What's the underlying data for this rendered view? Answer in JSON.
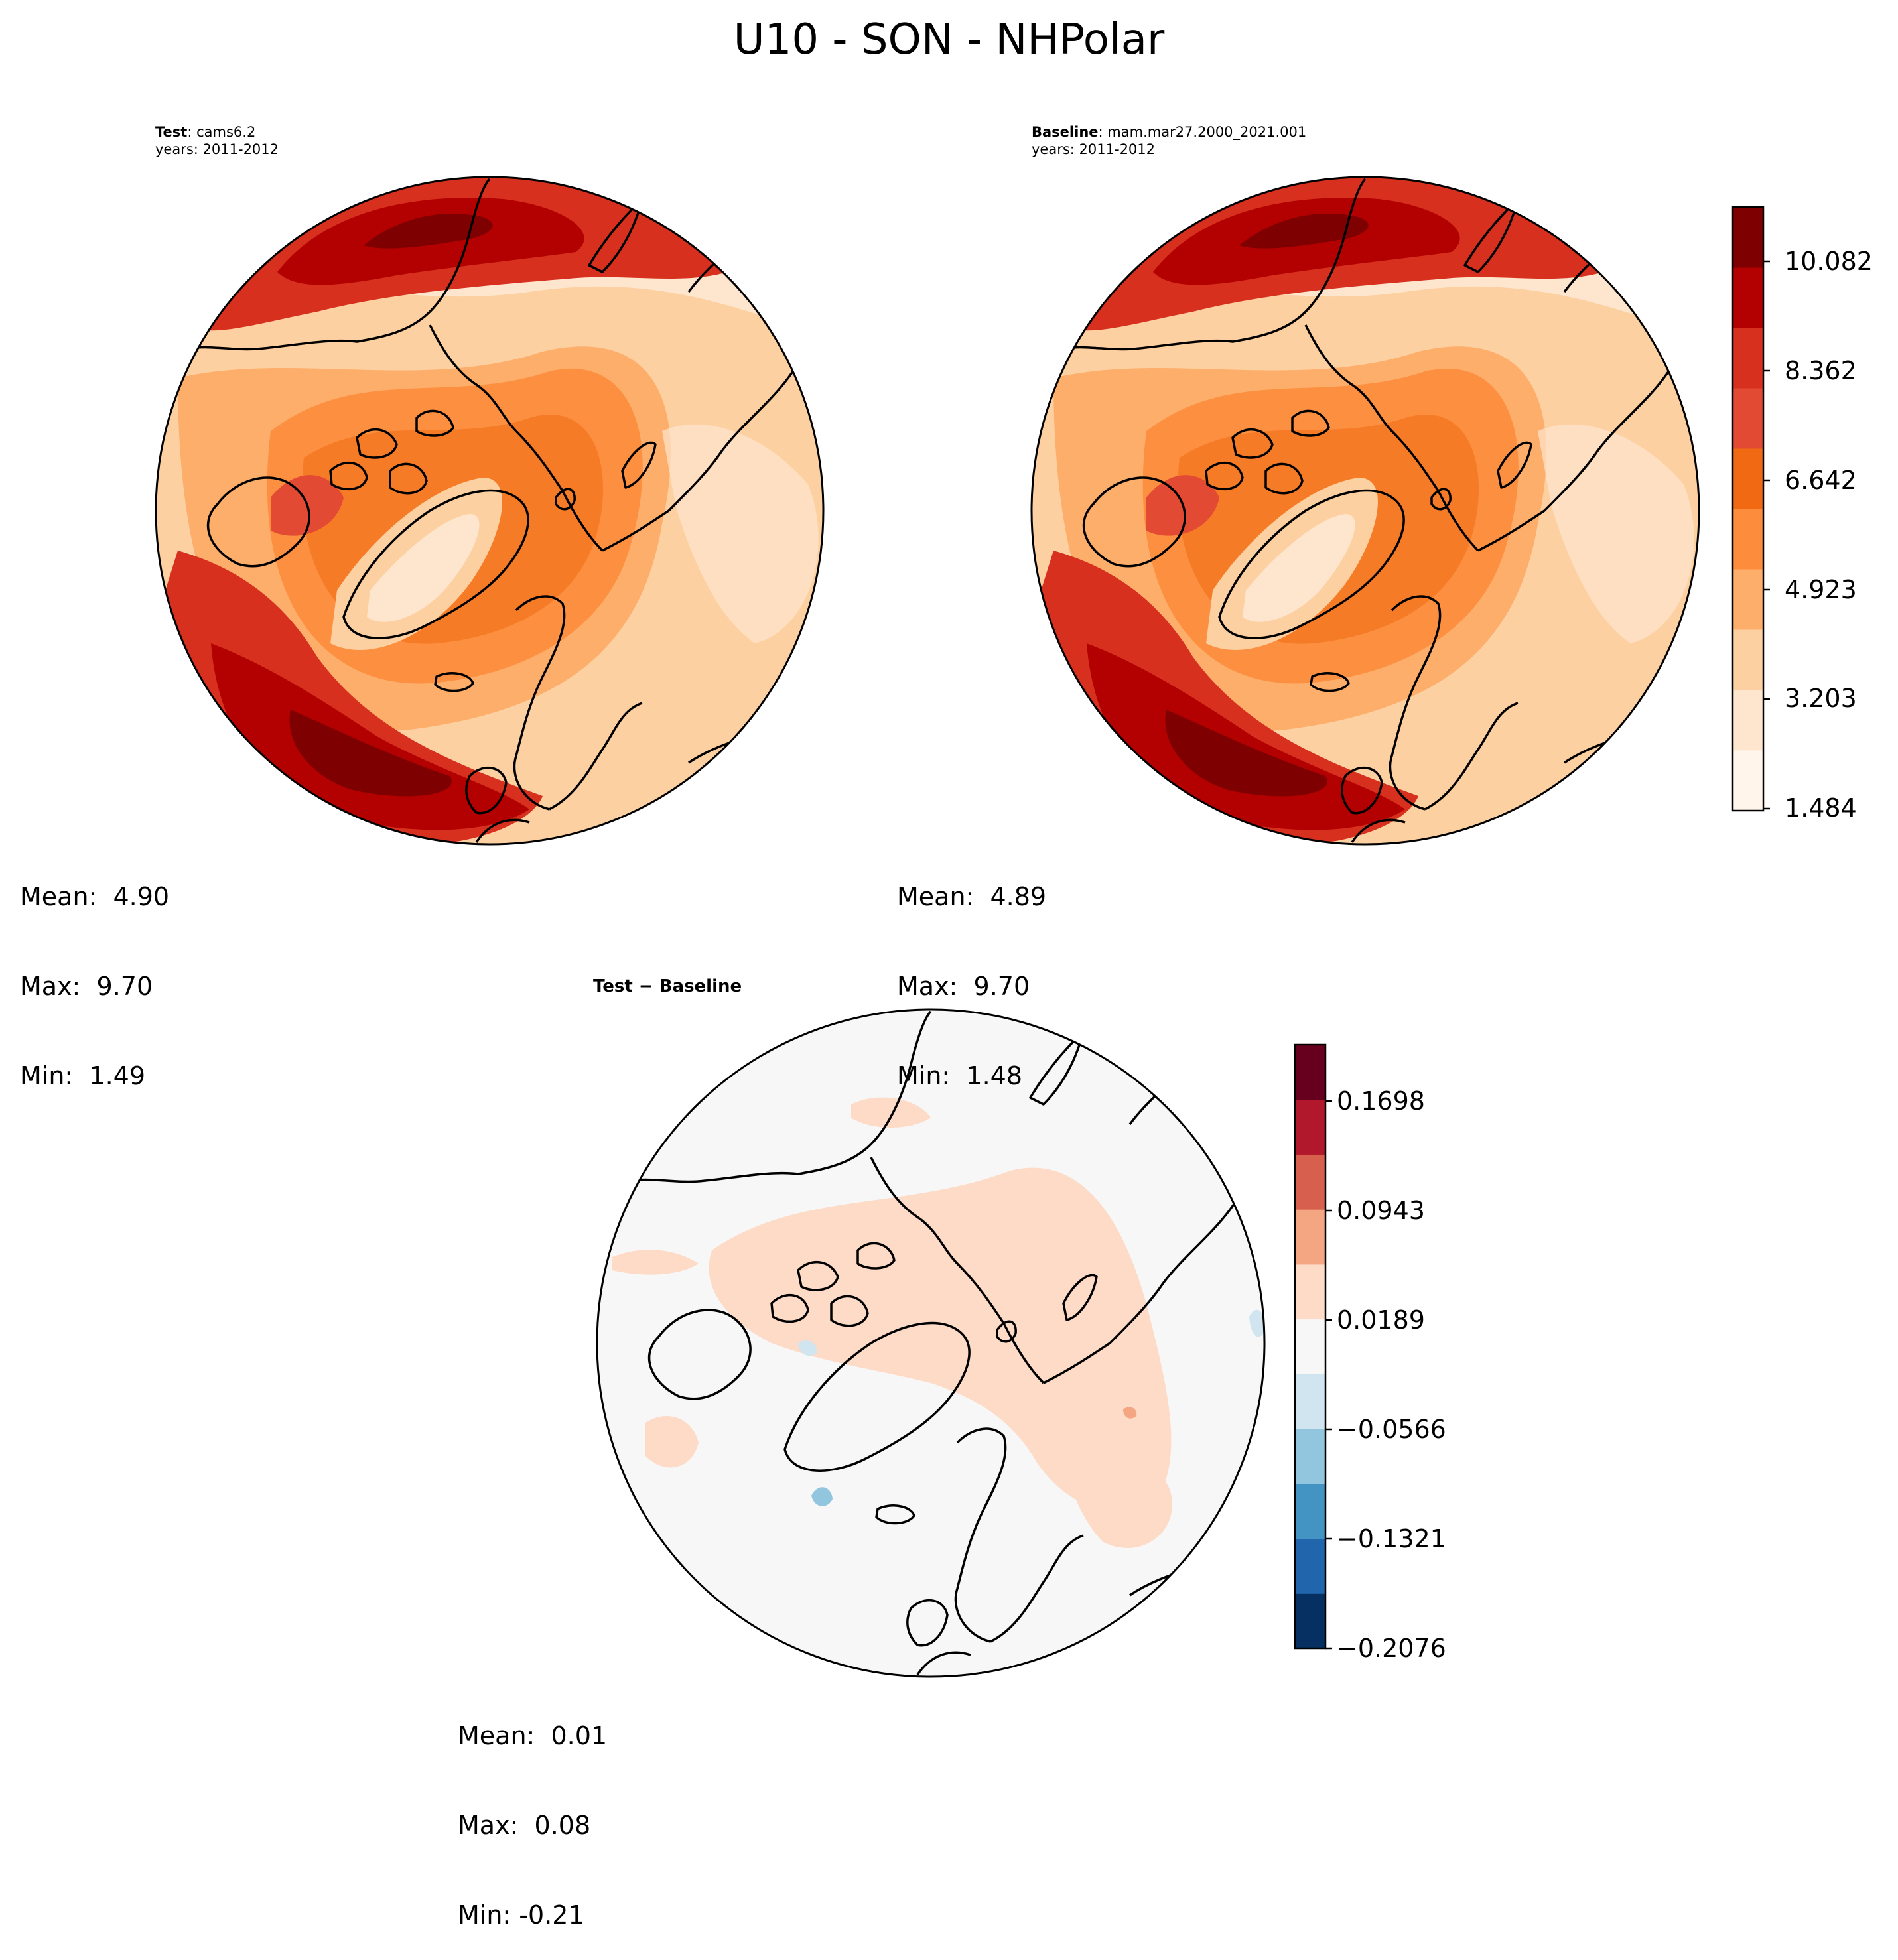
{
  "figure": {
    "title": "U10 - SON - NHPolar"
  },
  "panels": {
    "test": {
      "label": "Test",
      "case": "cams6.2",
      "years": "years: 2011-2012",
      "stats": {
        "mean": "Mean:  4.90",
        "max": "Max:  9.70",
        "min": "Min:  1.49"
      }
    },
    "baseline": {
      "label": "Baseline",
      "case": "mam.mar27.2000_2021.001",
      "years": "years: 2011-2012",
      "stats": {
        "mean": "Mean:  4.89",
        "max": "Max:  9.70",
        "min": "Min:  1.48"
      }
    },
    "diff": {
      "label": "Test − Baseline",
      "stats": {
        "mean": "Mean:  0.01",
        "max": "Max:  0.08",
        "min": "Min: -0.21"
      }
    }
  },
  "colorbars": {
    "main": {
      "ticks": [
        "10.082",
        "8.362",
        "6.642",
        "4.923",
        "3.203",
        "1.484"
      ],
      "colors": [
        "#fff5eb",
        "#fee6ce",
        "#fdd0a2",
        "#fdae6b",
        "#fd8d3c",
        "#f16913",
        "#e34a33",
        "#d7301f",
        "#b30000",
        "#7f0000"
      ]
    },
    "diff": {
      "ticks": [
        "0.1698",
        "0.0943",
        "0.0189",
        "−0.0566",
        "−0.1321",
        "−0.2076"
      ],
      "colors": [
        "#053061",
        "#2166ac",
        "#4393c3",
        "#92c5de",
        "#d1e5f0",
        "#f7f7f7",
        "#fddbc7",
        "#f4a582",
        "#d6604d",
        "#b2182b",
        "#67001f"
      ]
    }
  },
  "chart_data": [
    {
      "type": "map",
      "projection": "north-polar-stereographic",
      "variable": "U10",
      "season": "SON",
      "region": "NHPolar",
      "panel": "Test",
      "case": "cams6.2",
      "colorbar_ticks": [
        1.484,
        3.203,
        4.923,
        6.642,
        8.362,
        10.082
      ],
      "mean": 4.9,
      "max": 9.7,
      "min": 1.49
    },
    {
      "type": "map",
      "projection": "north-polar-stereographic",
      "variable": "U10",
      "season": "SON",
      "region": "NHPolar",
      "panel": "Baseline",
      "case": "mam.mar27.2000_2021.001",
      "colorbar_ticks": [
        1.484,
        3.203,
        4.923,
        6.642,
        8.362,
        10.082
      ],
      "mean": 4.89,
      "max": 9.7,
      "min": 1.48
    },
    {
      "type": "map",
      "projection": "north-polar-stereographic",
      "variable": "U10",
      "panel": "Test - Baseline",
      "colorbar_ticks": [
        -0.2076,
        -0.1321,
        -0.0566,
        0.0189,
        0.0943,
        0.1698
      ],
      "mean": 0.01,
      "max": 0.08,
      "min": -0.21
    }
  ]
}
